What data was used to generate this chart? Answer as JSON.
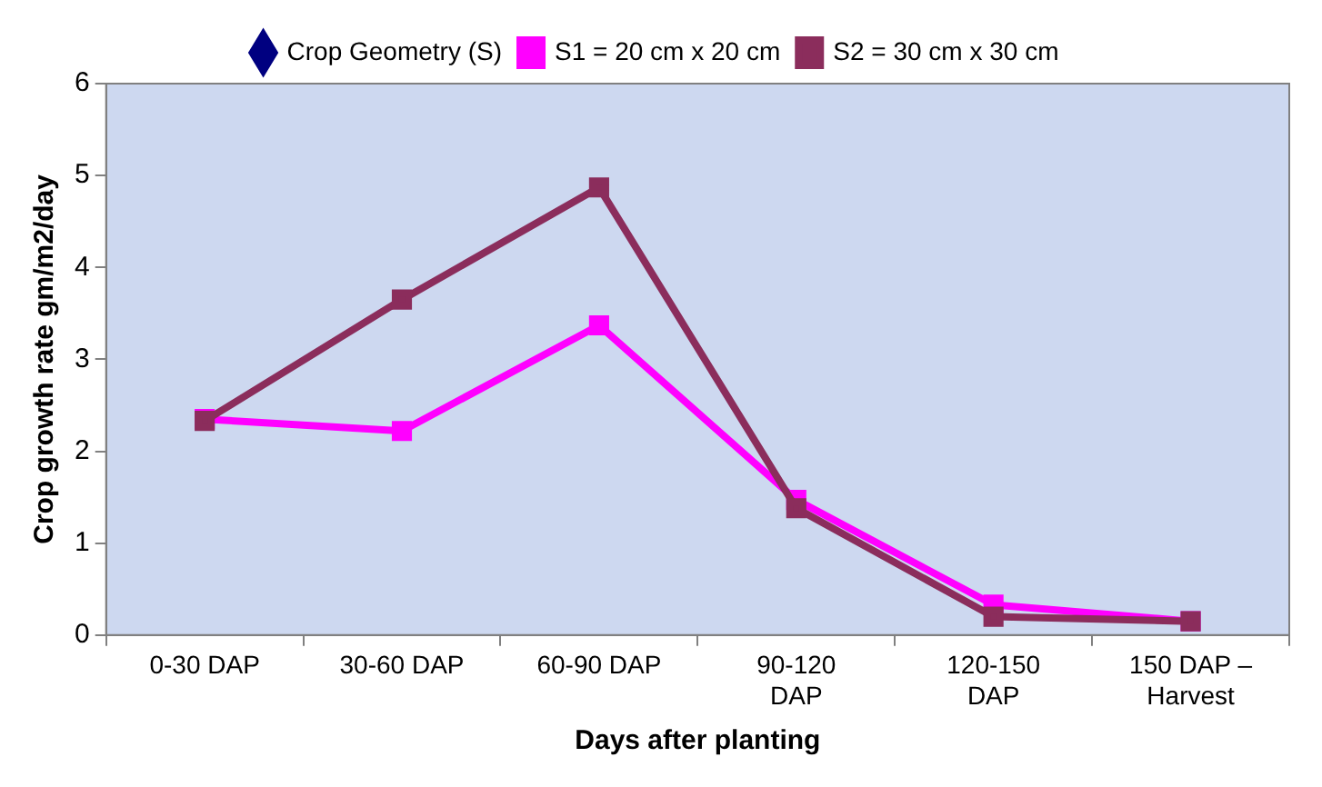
{
  "chart_data": {
    "type": "line",
    "xlabel": "Days after planting",
    "ylabel": "Crop growth rate gm/m2/day",
    "categories": [
      "0-30 DAP",
      "30-60 DAP",
      "60-90 DAP",
      "90-120 DAP",
      "120-150 DAP",
      "150 DAP – Harvest"
    ],
    "series": [
      {
        "name": "Crop Geometry (S)",
        "color": "#000080",
        "marker": "diamond",
        "values": [
          null,
          null,
          null,
          null,
          null,
          null
        ]
      },
      {
        "name": "S1 = 20 cm x 20 cm",
        "color": "#ff00ff",
        "marker": "square",
        "values": [
          2.35,
          2.22,
          3.37,
          1.47,
          0.33,
          0.15
        ]
      },
      {
        "name": "S2 = 30 cm x 30 cm",
        "color": "#8b2d5c",
        "marker": "square",
        "values": [
          2.33,
          3.65,
          4.87,
          1.38,
          0.2,
          0.15
        ]
      }
    ],
    "ylim": [
      0,
      6
    ],
    "yticks": [
      0,
      1,
      2,
      3,
      4,
      5,
      6
    ],
    "grid": false,
    "legend": "top"
  }
}
